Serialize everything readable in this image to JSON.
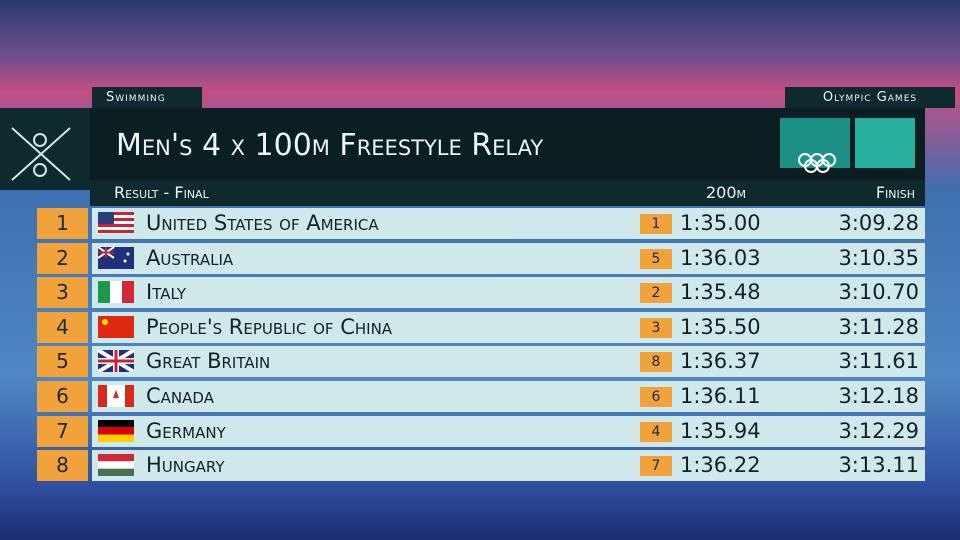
{
  "header": {
    "sport": "Swimming",
    "brand": "Olympic Games",
    "title": "Men's 4 x 100m Freestyle Relay",
    "subtitle": "Result - Final",
    "columns": [
      "200m",
      "Finish"
    ]
  },
  "table": {
    "rows": [
      {
        "rank": "1",
        "country": "United States of America",
        "split_rank": "1",
        "split": "1:35.00",
        "finish": "3:09.28"
      },
      {
        "rank": "2",
        "country": "Australia",
        "split_rank": "5",
        "split": "1:36.03",
        "finish": "3:10.35"
      },
      {
        "rank": "3",
        "country": "Italy",
        "split_rank": "2",
        "split": "1:35.48",
        "finish": "3:10.70"
      },
      {
        "rank": "4",
        "country": "People's Republic of China",
        "split_rank": "3",
        "split": "1:35.50",
        "finish": "3:11.28"
      },
      {
        "rank": "5",
        "country": "Great Britain",
        "split_rank": "8",
        "split": "1:36.37",
        "finish": "3:11.61"
      },
      {
        "rank": "6",
        "country": "Canada",
        "split_rank": "6",
        "split": "1:36.11",
        "finish": "3:12.18"
      },
      {
        "rank": "7",
        "country": "Germany",
        "split_rank": "4",
        "split": "1:35.94",
        "finish": "3:12.29"
      },
      {
        "rank": "8",
        "country": "Hungary",
        "split_rank": "7",
        "split": "1:36.22",
        "finish": "3:13.11"
      }
    ]
  }
}
